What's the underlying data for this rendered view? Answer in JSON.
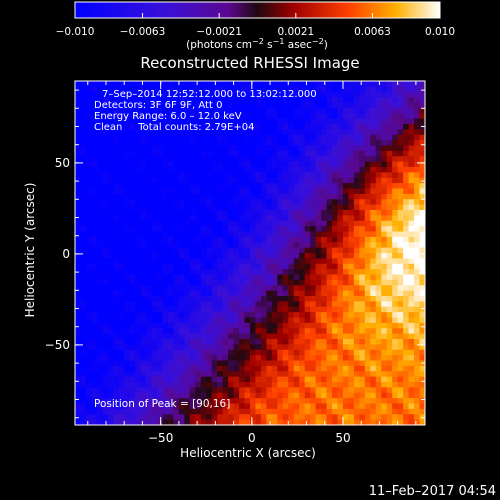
{
  "chart_data": {
    "type": "heatmap",
    "title": "Reconstructed RHESSI Image",
    "xlabel": "Heliocentric X (arcsec)",
    "ylabel": "Heliocentric Y (arcsec)",
    "xlim": [
      -97,
      95
    ],
    "ylim": [
      -94,
      95
    ],
    "x_ticks": [
      -50,
      0,
      50
    ],
    "y_ticks": [
      -50,
      0,
      50
    ],
    "x_tick_labels": [
      "−50",
      "0",
      "50"
    ],
    "y_tick_labels": [
      "−50",
      "0",
      "50"
    ],
    "colorbar": {
      "range": [
        -0.01,
        0.01
      ],
      "tick_labels": [
        "−0.010",
        "−0.0063",
        "−0.0021",
        "0.0021",
        "0.0063",
        "0.010"
      ],
      "tick_values": [
        -0.01,
        -0.0063,
        -0.0021,
        0.0021,
        0.0063,
        0.01
      ],
      "unit_parts": [
        "(photons cm",
        "−2",
        " s",
        "−1",
        " asec",
        "−2",
        ")"
      ]
    },
    "annotations": [
      "7–Sep–2014 12:52:12.000 to 13:02:12.000",
      "Detectors: 3F 6F 9F, Att 0",
      "Energy Range: 6.0 – 12.0 keV",
      "Clean     Total counts: 2.79E+04"
    ],
    "peak_label": "Position of Peak = [90,16]",
    "peak": [
      90,
      16
    ],
    "grid": false
  },
  "footer": {
    "timestamp": "11–Feb–2017 04:54"
  }
}
